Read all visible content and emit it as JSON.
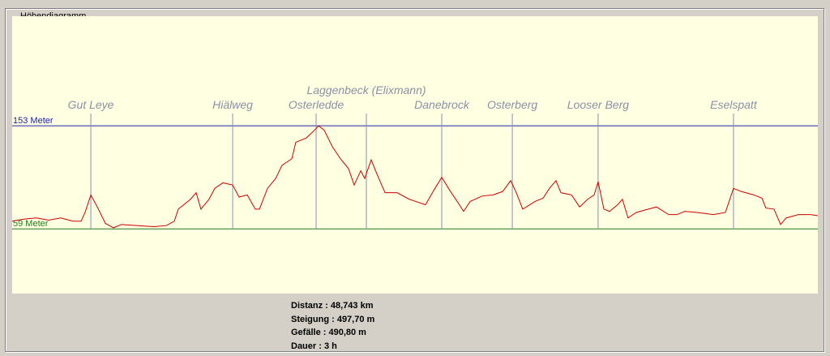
{
  "chart_data": {
    "type": "line",
    "title": "Höhendiagramm",
    "x": [
      0,
      0.74,
      1.47,
      2.21,
      2.94,
      3.68,
      4.17,
      4.41,
      4.76,
      5.15,
      5.64,
      6.13,
      6.62,
      7.6,
      8.58,
      9.32,
      9.81,
      10.05,
      10.79,
      11.13,
      11.42,
      11.91,
      12.26,
      12.75,
      13.34,
      13.73,
      14.22,
      14.71,
      14.96,
      15.45,
      15.94,
      16.33,
      16.92,
      17.16,
      17.8,
      18.29,
      18.54,
      18.88,
      19.37,
      19.86,
      20.35,
      20.69,
      21.09,
      21.33,
      21.72,
      22.07,
      22.56,
      23.29,
      24.03,
      25.01,
      25.5,
      25.99,
      26.48,
      26.97,
      27.31,
      27.71,
      28.44,
      29.08,
      29.67,
      30.16,
      30.5,
      30.89,
      31.63,
      32.12,
      32.51,
      32.9,
      33.2,
      33.84,
      34.33,
      34.82,
      35.21,
      35.45,
      35.8,
      36.14,
      36.63,
      36.92,
      37.26,
      37.76,
      38.49,
      38.98,
      39.72,
      40.21,
      40.7,
      41.44,
      42.42,
      43.15,
      43.64,
      44.13,
      44.87,
      45.36,
      45.6,
      46.09,
      46.49,
      46.83,
      47.57,
      48.3,
      48.74
    ],
    "values": [
      66,
      68,
      69,
      67,
      69,
      66,
      66,
      74,
      90,
      79,
      64,
      60,
      63,
      62,
      61,
      62,
      66,
      77,
      86,
      92,
      77,
      86,
      96,
      101,
      99,
      88,
      90,
      77,
      77,
      96,
      105,
      117,
      123,
      138,
      142,
      149,
      153,
      149,
      134,
      123,
      114,
      99,
      112,
      105,
      122,
      109,
      92,
      92,
      86,
      81,
      94,
      106,
      94,
      83,
      75,
      84,
      89,
      90,
      93,
      103,
      92,
      77,
      84,
      87,
      96,
      103,
      92,
      90,
      79,
      86,
      90,
      102,
      77,
      75,
      81,
      86,
      69,
      74,
      77,
      79,
      72,
      72,
      75,
      74,
      72,
      74,
      96,
      93,
      90,
      87,
      78,
      77,
      63,
      69,
      72,
      72,
      71
    ],
    "color": "#cc0000",
    "xlim": [
      0,
      48.743
    ],
    "ylim": [
      0,
      253
    ],
    "yticks": [
      {
        "value": 59,
        "label": "59 Meter"
      },
      {
        "value": 153,
        "label": "153 Meter"
      }
    ],
    "ytick_colors": [
      "#1f7a1f",
      "#2020b0"
    ],
    "waypoint_color": "#8a90b0",
    "waypoints": [
      {
        "name": "Gut Leye",
        "x": 4.76
      },
      {
        "name": "Hiälweg",
        "x": 13.34
      },
      {
        "name": "Osterledde",
        "x": 18.39
      },
      {
        "name": "Laggenbeck (Elixmann)",
        "x": 21.43
      },
      {
        "name": "Danebrock",
        "x": 25.99
      },
      {
        "name": "Osterberg",
        "x": 30.26
      },
      {
        "name": "Looser Berg",
        "x": 35.45
      },
      {
        "name": "Eselspatt",
        "x": 43.64
      }
    ],
    "summary": [
      "Distanz : 48,743 km",
      "Steigung : 497,70 m",
      "Gefälle : 490,80 m",
      "Dauer : 3 h"
    ]
  }
}
